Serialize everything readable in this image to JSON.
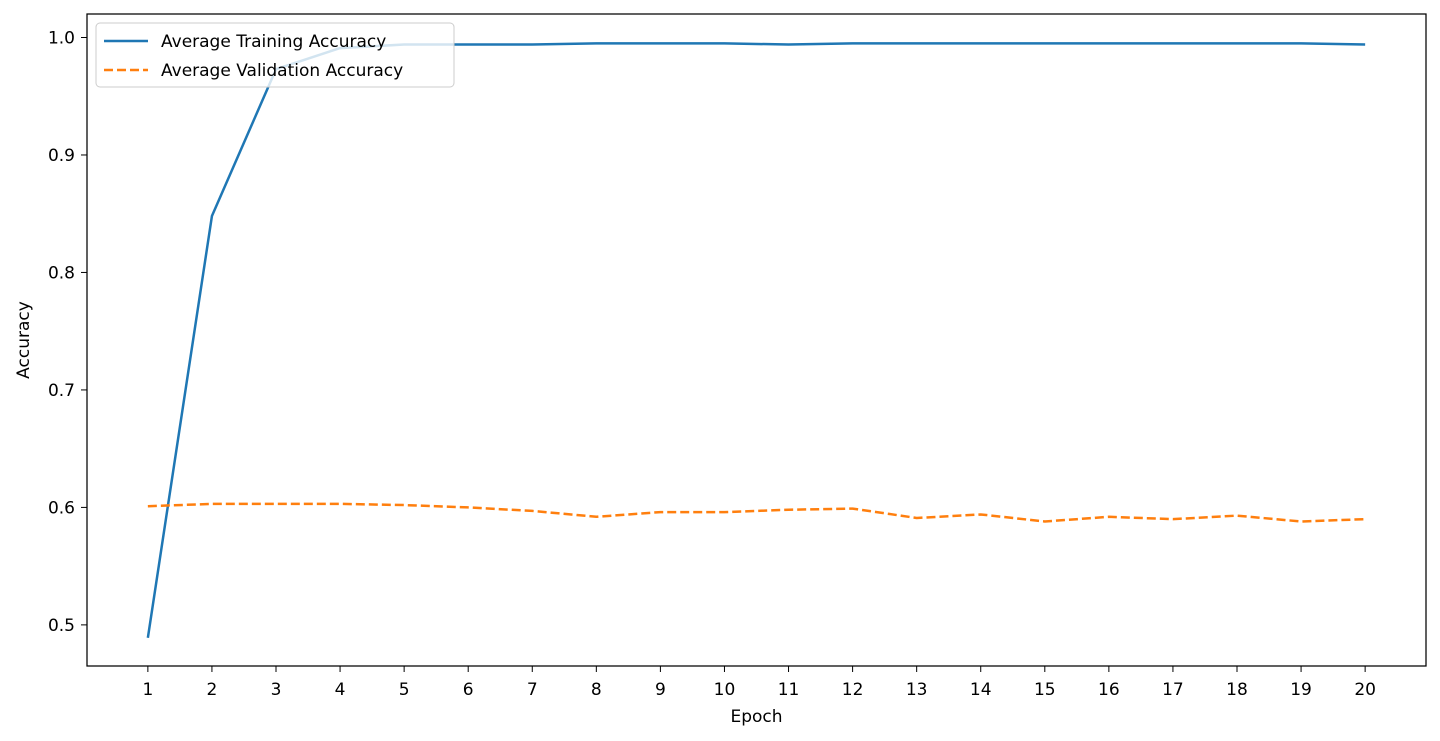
{
  "chart_data": {
    "type": "line",
    "title": "",
    "xlabel": "Epoch",
    "ylabel": "Accuracy",
    "x": [
      1,
      2,
      3,
      4,
      5,
      6,
      7,
      8,
      9,
      10,
      11,
      12,
      13,
      14,
      15,
      16,
      17,
      18,
      19,
      20
    ],
    "xlim": [
      0.05,
      20.95
    ],
    "ylim": [
      0.465,
      1.02
    ],
    "yticks": [
      0.5,
      0.6,
      0.7,
      0.8,
      0.9,
      1.0
    ],
    "ytick_labels": [
      "0.5",
      "0.6",
      "0.7",
      "0.8",
      "0.9",
      "1.0"
    ],
    "grid": false,
    "legend_position": "top-left",
    "series": [
      {
        "name": "Average Training Accuracy",
        "color": "#1f77b4",
        "style": "solid",
        "values": [
          0.489,
          0.848,
          0.973,
          0.991,
          0.994,
          0.994,
          0.994,
          0.995,
          0.995,
          0.995,
          0.994,
          0.995,
          0.995,
          0.995,
          0.995,
          0.995,
          0.995,
          0.995,
          0.995,
          0.994
        ]
      },
      {
        "name": "Average Validation Accuracy",
        "color": "#ff7f0e",
        "style": "dashed",
        "values": [
          0.601,
          0.603,
          0.603,
          0.603,
          0.602,
          0.6,
          0.597,
          0.592,
          0.596,
          0.596,
          0.598,
          0.599,
          0.591,
          0.594,
          0.588,
          0.592,
          0.59,
          0.593,
          0.588,
          0.59
        ]
      }
    ]
  }
}
